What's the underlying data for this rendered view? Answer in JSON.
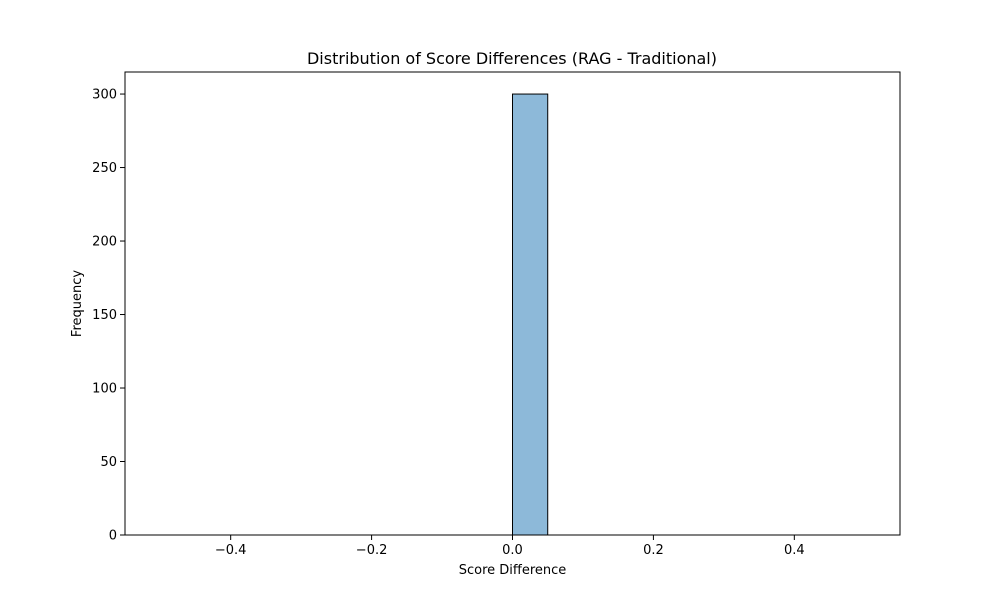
{
  "chart_data": {
    "type": "bar",
    "title": "Distribution of Score Differences (RAG - Traditional)",
    "xlabel": "Score Difference",
    "ylabel": "Frequency",
    "xlim": [
      -0.55,
      0.55
    ],
    "ylim": [
      0,
      315
    ],
    "bin_edges": [
      -0.5,
      -0.45,
      -0.4,
      -0.35,
      -0.3,
      -0.25,
      -0.2,
      -0.15,
      -0.1,
      -0.05,
      0.0,
      0.05,
      0.1,
      0.15,
      0.2,
      0.25,
      0.3,
      0.35,
      0.4,
      0.45,
      0.5
    ],
    "counts": [
      0,
      0,
      0,
      0,
      0,
      0,
      0,
      0,
      0,
      0,
      300,
      0,
      0,
      0,
      0,
      0,
      0,
      0,
      0,
      0
    ],
    "x_ticks": [
      -0.4,
      -0.2,
      0.0,
      0.2,
      0.4
    ],
    "x_tick_labels": [
      "−0.4",
      "−0.2",
      "0.0",
      "0.2",
      "0.4"
    ],
    "y_ticks": [
      0,
      50,
      100,
      150,
      200,
      250,
      300
    ],
    "y_tick_labels": [
      "0",
      "50",
      "100",
      "150",
      "200",
      "250",
      "300"
    ],
    "bar_color": "#8db9d9",
    "edge_color": "#000000",
    "grid": false
  }
}
